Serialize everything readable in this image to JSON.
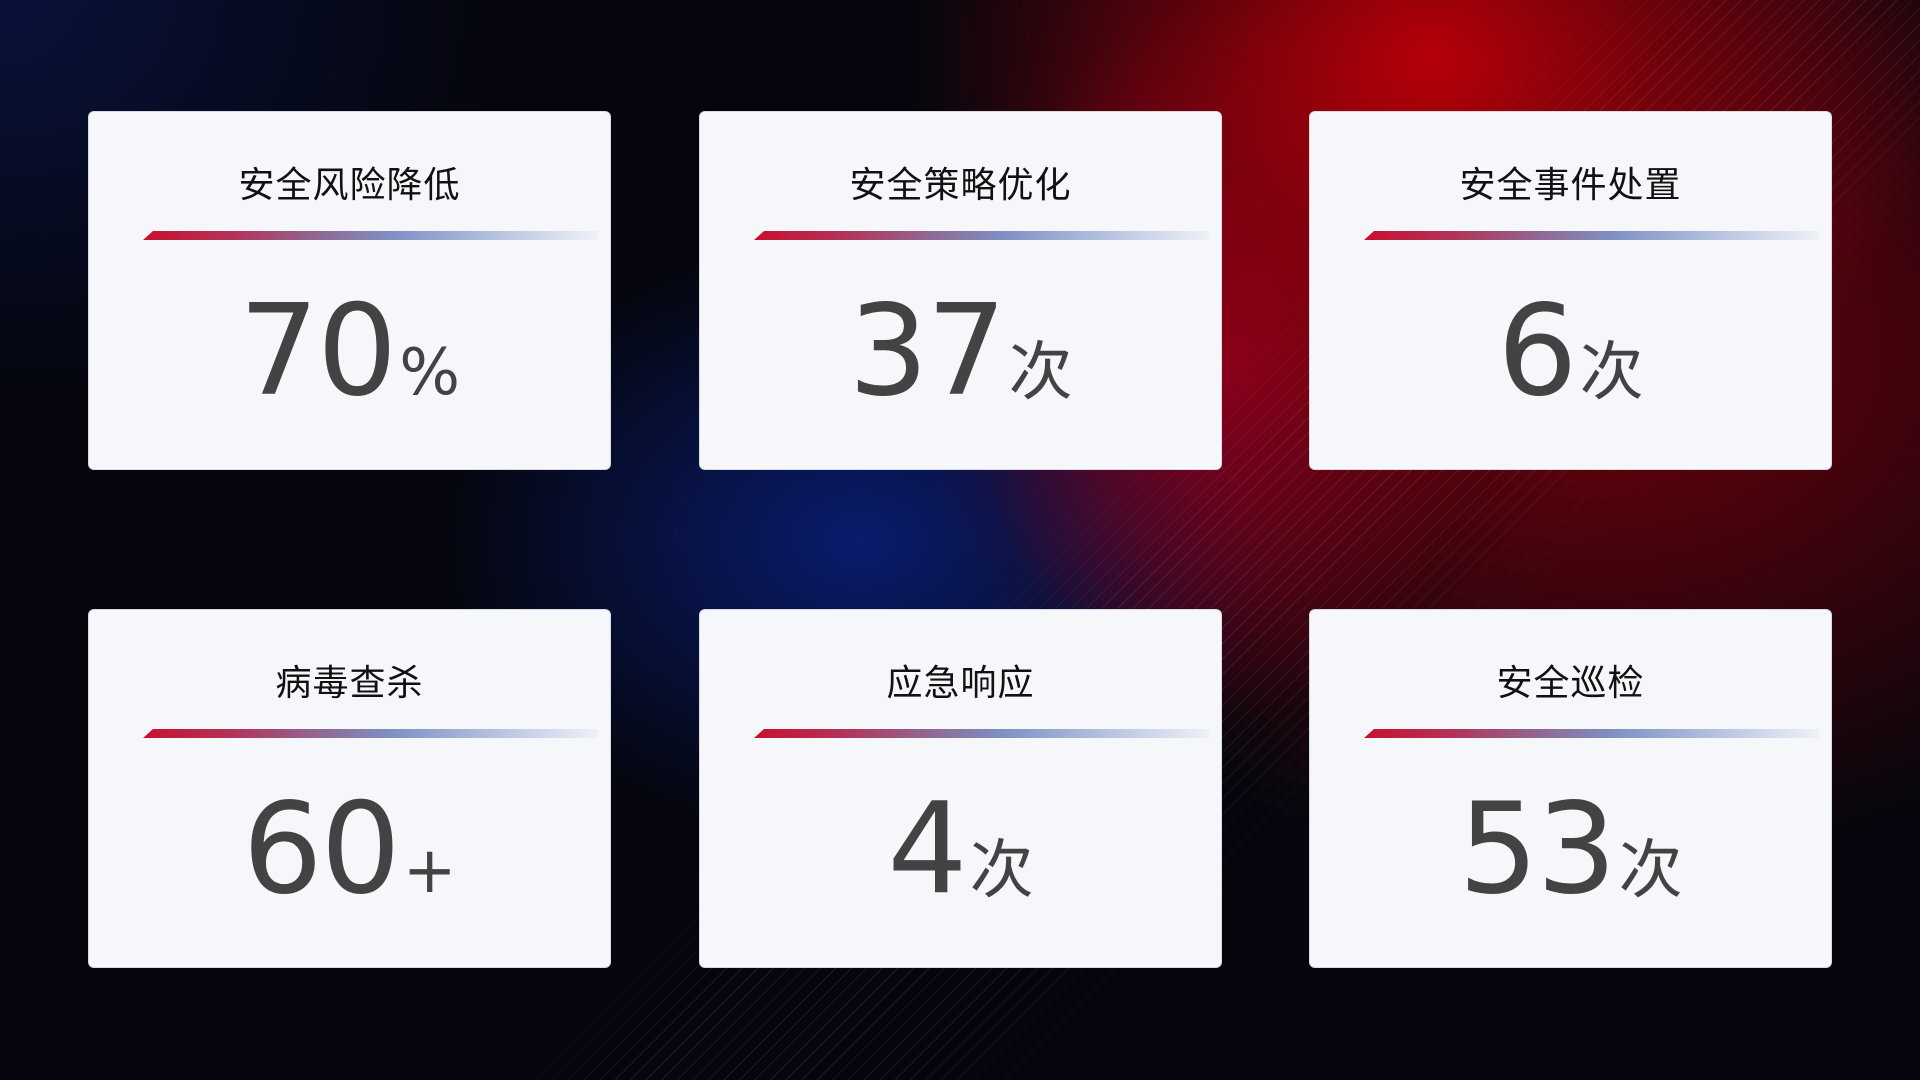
{
  "cards": [
    {
      "title": "安全风险降低",
      "value": "70",
      "unit": "%"
    },
    {
      "title": "安全策略优化",
      "value": "37",
      "unit": "次"
    },
    {
      "title": "安全事件处置",
      "value": "6",
      "unit": "次"
    },
    {
      "title": "病毒查杀",
      "value": "60",
      "unit": "+"
    },
    {
      "title": "应急响应",
      "value": "4",
      "unit": "次"
    },
    {
      "title": "安全巡检",
      "value": "53",
      "unit": "次"
    }
  ],
  "colors": {
    "accent_red": "#c8102e",
    "accent_blue": "#7f90c4",
    "card_bg": "#f6f7fb",
    "value_text": "#434343"
  }
}
